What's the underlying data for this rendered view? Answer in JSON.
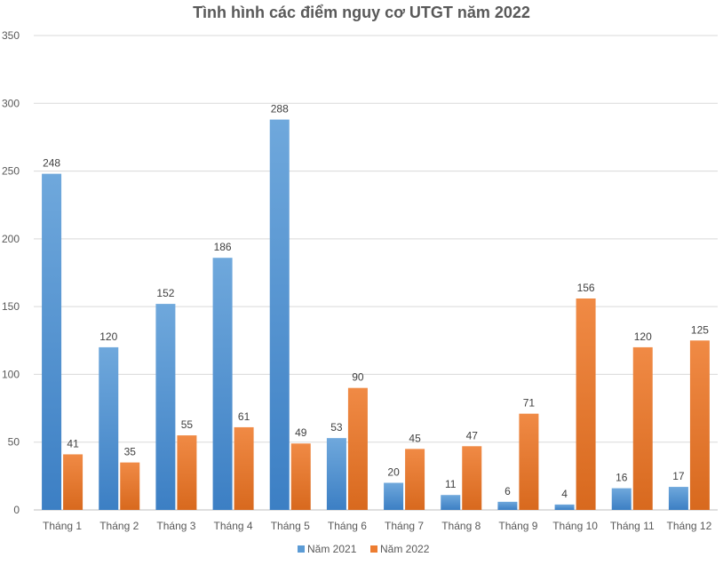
{
  "chart_data": {
    "type": "bar",
    "title": "Tình hình các điểm nguy cơ UTGT năm 2022",
    "xlabel": "",
    "ylabel": "",
    "ylim": [
      0,
      350
    ],
    "yticks": [
      0,
      50,
      100,
      150,
      200,
      250,
      300,
      350
    ],
    "grid": true,
    "legend_position": "bottom",
    "categories": [
      "Tháng 1",
      "Tháng 2",
      "Tháng 3",
      "Tháng 4",
      "Tháng 5",
      "Tháng 6",
      "Tháng 7",
      "Tháng 8",
      "Tháng 9",
      "Tháng 10",
      "Tháng 11",
      "Tháng 12"
    ],
    "series": [
      {
        "name": "Năm 2021",
        "color": "#5B9BD5",
        "values": [
          248,
          120,
          152,
          186,
          288,
          53,
          20,
          11,
          6,
          4,
          16,
          17
        ]
      },
      {
        "name": "Năm 2022",
        "color": "#ED7D31",
        "values": [
          41,
          35,
          55,
          61,
          49,
          90,
          45,
          47,
          71,
          156,
          120,
          125
        ]
      }
    ]
  }
}
